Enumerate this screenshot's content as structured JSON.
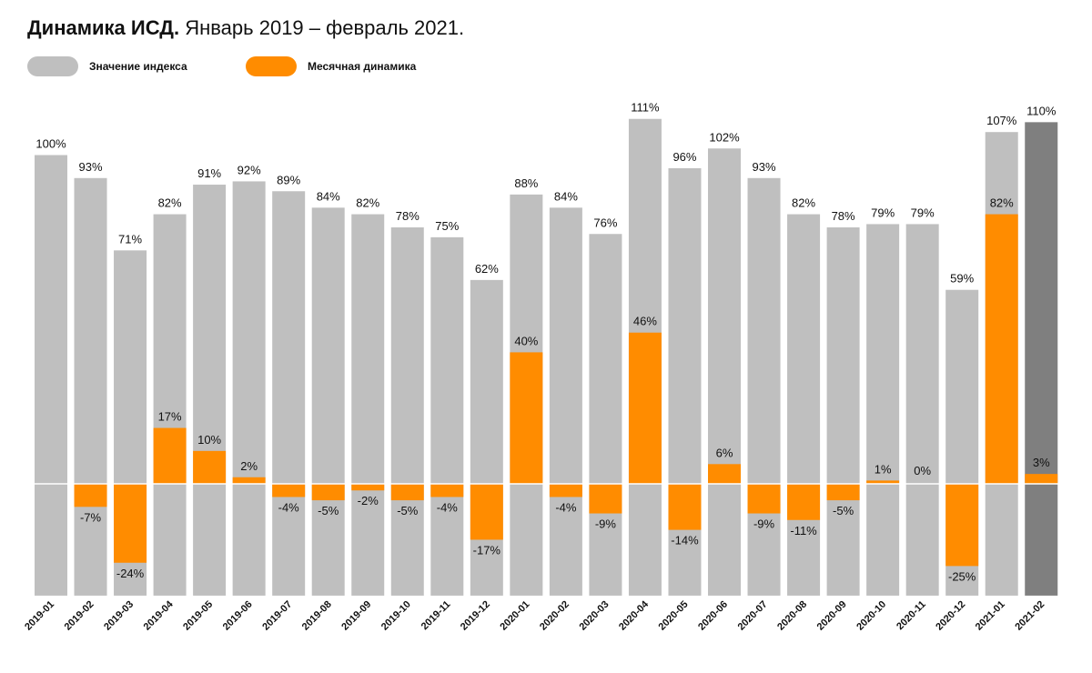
{
  "title": {
    "bold": "Динамика ИСД.",
    "rest": "Январь 2019 – февраль 2021."
  },
  "colors": {
    "index": "#bfbfbf",
    "index_last": "#7f7f7f",
    "monthly": "#ff8c00",
    "zero_line": "#ffffff"
  },
  "legend": [
    {
      "label": "Значение индекса",
      "color": "#bfbfbf"
    },
    {
      "label": "Месячная динамика",
      "color": "#ff8c00"
    }
  ],
  "chart_data": {
    "type": "bar",
    "categories": [
      "2019-01",
      "2019-02",
      "2019-03",
      "2019-04",
      "2019-05",
      "2019-06",
      "2019-07",
      "2019-08",
      "2019-09",
      "2019-10",
      "2019-11",
      "2019-12",
      "2020-01",
      "2020-02",
      "2020-03",
      "2020-04",
      "2020-05",
      "2020-06",
      "2020-07",
      "2020-08",
      "2020-09",
      "2020-10",
      "2020-11",
      "2020-12",
      "2021-01",
      "2021-02"
    ],
    "series": [
      {
        "name": "Значение индекса",
        "values": [
          100,
          93,
          71,
          82,
          91,
          92,
          89,
          84,
          82,
          78,
          75,
          62,
          88,
          84,
          76,
          111,
          96,
          102,
          93,
          82,
          78,
          79,
          79,
          59,
          107,
          110
        ]
      },
      {
        "name": "Месячная динамика",
        "values": [
          null,
          -7,
          -24,
          17,
          10,
          2,
          -4,
          -5,
          -2,
          -5,
          -4,
          -17,
          40,
          -4,
          -9,
          46,
          -14,
          6,
          -9,
          -11,
          -5,
          1,
          0,
          -25,
          82,
          3
        ]
      }
    ],
    "ylim": [
      -34,
      115
    ],
    "legend_position": "top-left",
    "grid": false
  }
}
